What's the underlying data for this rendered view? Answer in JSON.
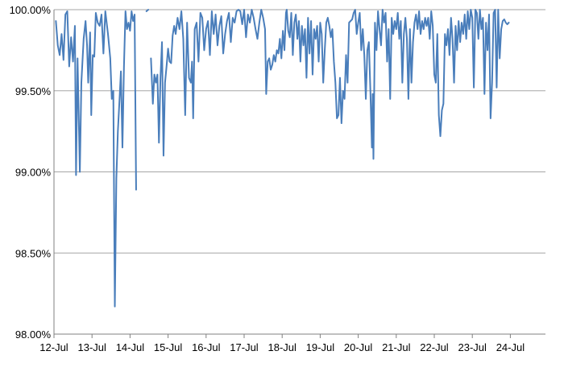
{
  "chart_data": {
    "type": "line",
    "title": "",
    "xlabel": "",
    "ylabel": "",
    "ylim": [
      98.0,
      100.0
    ],
    "y_ticks": [
      {
        "value": 98.0,
        "label": "98.00%"
      },
      {
        "value": 98.5,
        "label": "98.50%"
      },
      {
        "value": 99.0,
        "label": "99.00%"
      },
      {
        "value": 99.5,
        "label": "99.50%"
      },
      {
        "value": 100.0,
        "label": "100.00%"
      }
    ],
    "x_categories": [
      "12-Jul",
      "13-Jul",
      "14-Jul",
      "15-Jul",
      "16-Jul",
      "17-Jul",
      "18-Jul",
      "19-Jul",
      "20-Jul",
      "21-Jul",
      "22-Jul",
      "23-Jul",
      "24-Jul"
    ],
    "x_range": [
      0,
      13.75
    ],
    "grid": true,
    "legend": "none",
    "colors": {
      "series": "#4a7ebb",
      "grid": "#a6a6a6",
      "axis": "#808080"
    },
    "series": [
      {
        "points": [
          [
            0.05,
            99.93
          ],
          [
            0.1,
            99.78
          ],
          [
            0.15,
            99.72
          ],
          [
            0.2,
            99.85
          ],
          [
            0.25,
            99.69
          ],
          [
            0.3,
            99.97
          ],
          [
            0.35,
            99.99
          ],
          [
            0.4,
            99.65
          ],
          [
            0.45,
            99.83
          ],
          [
            0.5,
            99.68
          ],
          [
            0.55,
            99.9
          ],
          [
            0.58,
            98.98
          ],
          [
            0.62,
            99.7
          ],
          [
            0.68,
            99.0
          ],
          [
            0.72,
            99.55
          ],
          [
            0.78,
            99.82
          ],
          [
            0.83,
            99.93
          ],
          [
            0.87,
            99.78
          ],
          [
            0.9,
            99.55
          ],
          [
            0.95,
            99.86
          ],
          [
            0.98,
            99.35
          ],
          [
            1.02,
            99.72
          ],
          [
            1.06,
            99.71
          ],
          [
            1.1,
            99.98
          ],
          [
            1.15,
            99.92
          ],
          [
            1.2,
            99.9
          ],
          [
            1.25,
            99.97
          ],
          [
            1.3,
            99.73
          ],
          [
            1.35,
            99.99
          ],
          [
            1.42,
            99.85
          ],
          [
            1.48,
            99.7
          ],
          [
            1.52,
            99.45
          ],
          [
            1.56,
            99.5
          ],
          [
            1.6,
            98.17
          ],
          [
            1.64,
            98.96
          ],
          [
            1.68,
            99.25
          ],
          [
            1.72,
            99.43
          ],
          [
            1.76,
            99.62
          ],
          [
            1.8,
            99.15
          ],
          [
            1.84,
            99.65
          ],
          [
            1.88,
            99.99
          ],
          [
            1.92,
            99.88
          ],
          [
            1.96,
            99.92
          ],
          [
            2.0,
            99.87
          ],
          [
            2.04,
            99.99
          ],
          [
            2.08,
            99.93
          ],
          [
            2.12,
            99.97
          ],
          [
            2.16,
            98.89
          ],
          [
            2.18,
            null
          ],
          [
            2.43,
            99.99
          ],
          [
            2.48,
            100.0
          ],
          [
            2.5,
            null
          ],
          [
            2.55,
            99.7
          ],
          [
            2.6,
            99.42
          ],
          [
            2.64,
            99.6
          ],
          [
            2.68,
            99.55
          ],
          [
            2.72,
            99.6
          ],
          [
            2.76,
            99.18
          ],
          [
            2.8,
            99.58
          ],
          [
            2.84,
            99.8
          ],
          [
            2.88,
            99.1
          ],
          [
            2.92,
            99.55
          ],
          [
            2.96,
            99.65
          ],
          [
            3.0,
            99.76
          ],
          [
            3.04,
            99.68
          ],
          [
            3.08,
            99.67
          ],
          [
            3.12,
            99.84
          ],
          [
            3.16,
            99.9
          ],
          [
            3.2,
            99.85
          ],
          [
            3.25,
            99.95
          ],
          [
            3.3,
            99.88
          ],
          [
            3.35,
            99.99
          ],
          [
            3.4,
            99.82
          ],
          [
            3.45,
            99.35
          ],
          [
            3.5,
            99.92
          ],
          [
            3.55,
            99.58
          ],
          [
            3.6,
            99.55
          ],
          [
            3.63,
            99.68
          ],
          [
            3.66,
            99.33
          ],
          [
            3.7,
            99.88
          ],
          [
            3.75,
            99.92
          ],
          [
            3.8,
            99.68
          ],
          [
            3.85,
            99.98
          ],
          [
            3.9,
            99.95
          ],
          [
            3.95,
            99.75
          ],
          [
            4.0,
            99.88
          ],
          [
            4.05,
            99.93
          ],
          [
            4.1,
            99.72
          ],
          [
            4.15,
            99.99
          ],
          [
            4.2,
            99.85
          ],
          [
            4.25,
            99.97
          ],
          [
            4.3,
            99.78
          ],
          [
            4.35,
            99.9
          ],
          [
            4.4,
            99.96
          ],
          [
            4.45,
            99.73
          ],
          [
            4.5,
            99.85
          ],
          [
            4.55,
            99.93
          ],
          [
            4.6,
            99.98
          ],
          [
            4.65,
            99.8
          ],
          [
            4.7,
            99.95
          ],
          [
            4.75,
            99.92
          ],
          [
            4.8,
            99.99
          ],
          [
            4.85,
            100.0
          ],
          [
            4.9,
            99.99
          ],
          [
            4.95,
            99.91
          ],
          [
            5.0,
            100.0
          ],
          [
            5.05,
            99.83
          ],
          [
            5.1,
            99.97
          ],
          [
            5.15,
            99.92
          ],
          [
            5.2,
            100.0
          ],
          [
            5.25,
            99.95
          ],
          [
            5.3,
            99.88
          ],
          [
            5.35,
            99.82
          ],
          [
            5.4,
            99.92
          ],
          [
            5.45,
            100.0
          ],
          [
            5.5,
            99.95
          ],
          [
            5.55,
            99.88
          ],
          [
            5.58,
            99.48
          ],
          [
            5.62,
            99.68
          ],
          [
            5.66,
            99.7
          ],
          [
            5.7,
            99.63
          ],
          [
            5.74,
            99.66
          ],
          [
            5.78,
            99.72
          ],
          [
            5.82,
            99.68
          ],
          [
            5.86,
            99.75
          ],
          [
            5.9,
            99.73
          ],
          [
            5.94,
            99.82
          ],
          [
            5.98,
            99.7
          ],
          [
            6.02,
            99.87
          ],
          [
            6.06,
            99.75
          ],
          [
            6.1,
            99.98
          ],
          [
            6.12,
            100.0
          ],
          [
            6.16,
            99.87
          ],
          [
            6.2,
            99.83
          ],
          [
            6.24,
            99.98
          ],
          [
            6.28,
            99.72
          ],
          [
            6.32,
            99.92
          ],
          [
            6.36,
            99.97
          ],
          [
            6.4,
            99.82
          ],
          [
            6.44,
            99.93
          ],
          [
            6.48,
            99.68
          ],
          [
            6.52,
            99.9
          ],
          [
            6.56,
            99.78
          ],
          [
            6.6,
            99.88
          ],
          [
            6.64,
            99.58
          ],
          [
            6.68,
            99.95
          ],
          [
            6.72,
            99.73
          ],
          [
            6.76,
            99.93
          ],
          [
            6.8,
            99.6
          ],
          [
            6.84,
            99.88
          ],
          [
            6.88,
            99.82
          ],
          [
            6.92,
            99.9
          ],
          [
            6.96,
            99.68
          ],
          [
            7.0,
            99.92
          ],
          [
            7.04,
            99.85
          ],
          [
            7.08,
            99.55
          ],
          [
            7.12,
            99.75
          ],
          [
            7.16,
            99.92
          ],
          [
            7.2,
            99.95
          ],
          [
            7.24,
            99.9
          ],
          [
            7.28,
            99.83
          ],
          [
            7.32,
            99.88
          ],
          [
            7.36,
            99.68
          ],
          [
            7.4,
            99.55
          ],
          [
            7.44,
            99.33
          ],
          [
            7.48,
            99.35
          ],
          [
            7.52,
            99.58
          ],
          [
            7.56,
            99.3
          ],
          [
            7.6,
            99.5
          ],
          [
            7.64,
            99.45
          ],
          [
            7.68,
            99.72
          ],
          [
            7.72,
            99.55
          ],
          [
            7.76,
            99.92
          ],
          [
            7.8,
            99.93
          ],
          [
            7.84,
            99.94
          ],
          [
            7.88,
            99.98
          ],
          [
            7.92,
            100.0
          ],
          [
            7.96,
            99.85
          ],
          [
            8.0,
            99.92
          ],
          [
            8.04,
            99.98
          ],
          [
            8.08,
            99.75
          ],
          [
            8.12,
            99.88
          ],
          [
            8.16,
            99.72
          ],
          [
            8.2,
            99.45
          ],
          [
            8.24,
            99.75
          ],
          [
            8.28,
            99.8
          ],
          [
            8.32,
            99.5
          ],
          [
            8.36,
            99.15
          ],
          [
            8.38,
            99.48
          ],
          [
            8.4,
            99.08
          ],
          [
            8.44,
            99.92
          ],
          [
            8.48,
            99.75
          ],
          [
            8.52,
            99.99
          ],
          [
            8.56,
            99.88
          ],
          [
            8.6,
            99.78
          ],
          [
            8.64,
            100.0
          ],
          [
            8.68,
            99.92
          ],
          [
            8.72,
            99.98
          ],
          [
            8.76,
            99.68
          ],
          [
            8.8,
            99.88
          ],
          [
            8.84,
            99.45
          ],
          [
            8.88,
            99.95
          ],
          [
            8.92,
            99.85
          ],
          [
            8.96,
            99.93
          ],
          [
            9.0,
            99.88
          ],
          [
            9.04,
            99.98
          ],
          [
            9.08,
            99.82
          ],
          [
            9.12,
            99.93
          ],
          [
            9.16,
            99.55
          ],
          [
            9.2,
            99.85
          ],
          [
            9.24,
            99.95
          ],
          [
            9.28,
            99.82
          ],
          [
            9.32,
            99.45
          ],
          [
            9.36,
            99.88
          ],
          [
            9.4,
            99.55
          ],
          [
            9.44,
            99.8
          ],
          [
            9.48,
            99.92
          ],
          [
            9.52,
            99.97
          ],
          [
            9.56,
            99.88
          ],
          [
            9.6,
            99.99
          ],
          [
            9.64,
            99.85
          ],
          [
            9.68,
            99.93
          ],
          [
            9.72,
            99.88
          ],
          [
            9.76,
            99.95
          ],
          [
            9.8,
            99.9
          ],
          [
            9.84,
            99.95
          ],
          [
            9.88,
            99.82
          ],
          [
            9.92,
            99.99
          ],
          [
            9.96,
            99.9
          ],
          [
            10.0,
            99.6
          ],
          [
            10.04,
            99.55
          ],
          [
            10.08,
            99.85
          ],
          [
            10.12,
            99.35
          ],
          [
            10.16,
            99.22
          ],
          [
            10.2,
            99.38
          ],
          [
            10.24,
            99.42
          ],
          [
            10.28,
            99.85
          ],
          [
            10.32,
            99.78
          ],
          [
            10.36,
            99.88
          ],
          [
            10.4,
            99.72
          ],
          [
            10.44,
            99.95
          ],
          [
            10.48,
            99.82
          ],
          [
            10.52,
            99.55
          ],
          [
            10.56,
            99.9
          ],
          [
            10.6,
            99.75
          ],
          [
            10.64,
            99.93
          ],
          [
            10.68,
            99.8
          ],
          [
            10.72,
            99.92
          ],
          [
            10.76,
            99.85
          ],
          [
            10.8,
            99.97
          ],
          [
            10.84,
            99.82
          ],
          [
            10.88,
            99.99
          ],
          [
            10.92,
            99.88
          ],
          [
            10.96,
            100.0
          ],
          [
            11.0,
            99.95
          ],
          [
            11.04,
            99.52
          ],
          [
            11.08,
            100.0
          ],
          [
            11.12,
            99.98
          ],
          [
            11.16,
            99.82
          ],
          [
            11.2,
            100.0
          ],
          [
            11.24,
            99.88
          ],
          [
            11.28,
            99.95
          ],
          [
            11.32,
            99.48
          ],
          [
            11.36,
            99.92
          ],
          [
            11.4,
            99.75
          ],
          [
            11.44,
            99.97
          ],
          [
            11.48,
            99.33
          ],
          [
            11.52,
            99.55
          ],
          [
            11.56,
            99.98
          ],
          [
            11.6,
            100.0
          ],
          [
            11.64,
            99.52
          ],
          [
            11.68,
            100.0
          ],
          [
            11.72,
            99.7
          ],
          [
            11.76,
            99.88
          ],
          [
            11.8,
            99.93
          ],
          [
            11.84,
            99.94
          ],
          [
            11.88,
            99.92
          ],
          [
            11.92,
            99.91
          ],
          [
            11.96,
            99.92
          ]
        ]
      }
    ]
  }
}
